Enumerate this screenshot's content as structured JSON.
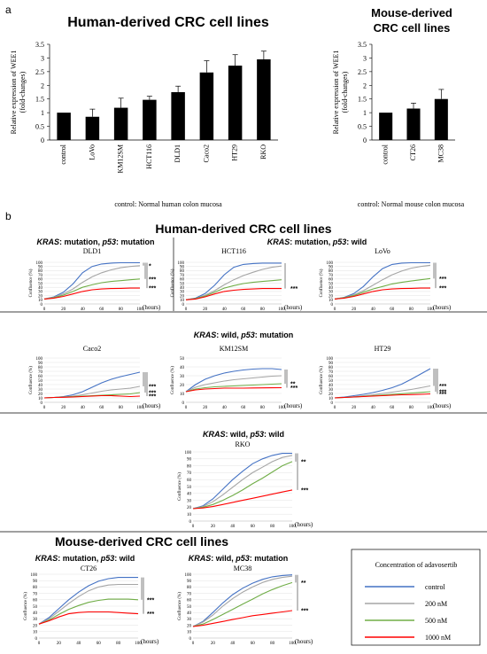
{
  "panel_labels": {
    "a": "a",
    "b": "b"
  },
  "headers": {
    "a_human": "Human-derived CRC cell lines",
    "a_mouse_1": "Mouse-derived",
    "a_mouse_2": "CRC cell lines",
    "b_human": "Human-derived CRC cell lines",
    "b_mouse": "Mouse-derived CRC cell lines"
  },
  "genotypes": {
    "g1": {
      "kras": "KRAS",
      "rest": ": mutation, ",
      "p53": "p53",
      "rest2": ": mutation"
    },
    "g2": {
      "kras": "KRAS",
      "rest": ": mutation, ",
      "p53": "p53",
      "rest2": ": wild"
    },
    "g3": {
      "kras": "KRAS",
      "rest": ": wild, ",
      "p53": "p53",
      "rest2": ": mutation"
    },
    "g4": {
      "kras": "KRAS",
      "rest": ": wild, ",
      "p53": "p53",
      "rest2": ": wild"
    },
    "g5": {
      "kras": "KRAS",
      "rest": ": mutation, ",
      "p53": "p53",
      "rest2": ": wild"
    },
    "g6": {
      "kras": "KRAS",
      "rest": ": wild, ",
      "p53": "p53",
      "rest2": ": mutation"
    }
  },
  "legend": {
    "title": "Concentration of adavosertib",
    "items": [
      {
        "label": "control",
        "color": "#4472c4"
      },
      {
        "label": "200 nM",
        "color": "#a5a5a5"
      },
      {
        "label": "500 nM",
        "color": "#70ad47"
      },
      {
        "label": "1000 nM",
        "color": "#ff0000"
      }
    ]
  },
  "chart_data": [
    {
      "id": "a_human",
      "type": "bar",
      "ylabel_1": "Relative expression of WEE1",
      "ylabel_2": "(fold-changes)",
      "caption": "control: Normal human colon mucosa",
      "ylim": [
        0,
        3.5
      ],
      "yticks": [
        "0",
        "0.5",
        "1",
        "1.5",
        "2",
        "2.5",
        "3",
        "3.5"
      ],
      "categories": [
        "control",
        "LoVo",
        "KM12SM",
        "HCT116",
        "DLD1",
        "Caco2",
        "HT29",
        "RKO"
      ],
      "values": [
        1.0,
        0.85,
        1.18,
        1.47,
        1.75,
        2.47,
        2.72,
        2.95
      ],
      "errors": [
        0.0,
        0.28,
        0.35,
        0.13,
        0.22,
        0.43,
        0.4,
        0.3
      ]
    },
    {
      "id": "a_mouse",
      "type": "bar",
      "ylabel_1": "Relative expression of WEE1",
      "ylabel_2": "(fold-changes)",
      "caption": "control: Normal mouse colon mucosa",
      "ylim": [
        0,
        3.5
      ],
      "yticks": [
        "0",
        "0.5",
        "1",
        "1.5",
        "2",
        "2.5",
        "3",
        "3.5"
      ],
      "categories": [
        "control",
        "CT26",
        "MC38"
      ],
      "values": [
        1.0,
        1.15,
        1.5
      ],
      "errors": [
        0.0,
        0.2,
        0.35
      ]
    },
    {
      "id": "dld1",
      "type": "line",
      "title": "DLD1",
      "ylabel": "Confluence (%)",
      "xlabel": "(hours)",
      "ylim": [
        0,
        100
      ],
      "xlim": [
        0,
        100
      ],
      "yticks": [
        "0",
        "10",
        "20",
        "30",
        "40",
        "50",
        "60",
        "70",
        "80",
        "90",
        "100"
      ],
      "xticks": [
        "0",
        "20",
        "40",
        "60",
        "80",
        "100"
      ],
      "x": [
        0,
        10,
        20,
        30,
        40,
        50,
        60,
        70,
        80,
        90,
        100
      ],
      "series": [
        {
          "name": "control",
          "values": [
            12,
            17,
            28,
            48,
            75,
            90,
            96,
            98,
            99,
            99,
            99
          ]
        },
        {
          "name": "200 nM",
          "values": [
            12,
            16,
            24,
            36,
            52,
            65,
            75,
            82,
            87,
            90,
            92
          ]
        },
        {
          "name": "500 nM",
          "values": [
            12,
            15,
            21,
            30,
            40,
            46,
            51,
            54,
            56,
            58,
            60
          ]
        },
        {
          "name": "1000 nM",
          "values": [
            12,
            14,
            18,
            24,
            30,
            34,
            36,
            37,
            37.5,
            38,
            38
          ]
        }
      ],
      "significance": [
        "*",
        "***",
        "***"
      ]
    },
    {
      "id": "hct116",
      "type": "line",
      "title": "HCT116",
      "ylabel": "Confluence (%)",
      "xlabel": "(hours)",
      "ylim": [
        0,
        100
      ],
      "xlim": [
        0,
        100
      ],
      "yticks": [
        "0",
        "10",
        "20",
        "30",
        "40",
        "50",
        "60",
        "70",
        "80",
        "90",
        "100"
      ],
      "xticks": [
        "0",
        "20",
        "40",
        "60",
        "80",
        "100"
      ],
      "x": [
        0,
        10,
        20,
        30,
        40,
        50,
        60,
        70,
        80,
        90,
        100
      ],
      "series": [
        {
          "name": "control",
          "values": [
            10,
            14,
            25,
            45,
            70,
            88,
            95,
            97,
            98,
            98,
            98
          ]
        },
        {
          "name": "200 nM",
          "values": [
            10,
            13,
            21,
            32,
            46,
            58,
            68,
            76,
            83,
            88,
            91
          ]
        },
        {
          "name": "500 nM",
          "values": [
            10,
            13,
            19,
            28,
            38,
            44,
            49,
            52,
            54,
            56,
            58
          ]
        },
        {
          "name": "1000 nM",
          "values": [
            10,
            12,
            17,
            24,
            30,
            33,
            35,
            36,
            37,
            37,
            37
          ]
        }
      ],
      "significance": [
        "***"
      ]
    },
    {
      "id": "lovo",
      "type": "line",
      "title": "LoVo",
      "ylabel": "Confluence (%)",
      "xlabel": "(hours)",
      "ylim": [
        0,
        100
      ],
      "xlim": [
        0,
        100
      ],
      "yticks": [
        "0",
        "10",
        "20",
        "30",
        "40",
        "50",
        "60",
        "70",
        "80",
        "90",
        "100"
      ],
      "xticks": [
        "0",
        "20",
        "40",
        "60",
        "80",
        "100"
      ],
      "x": [
        0,
        10,
        20,
        30,
        40,
        50,
        60,
        70,
        80,
        90,
        100
      ],
      "series": [
        {
          "name": "control",
          "values": [
            12,
            16,
            25,
            42,
            65,
            85,
            95,
            98,
            99,
            99,
            99
          ]
        },
        {
          "name": "200 nM",
          "values": [
            12,
            15,
            22,
            32,
            45,
            58,
            70,
            79,
            86,
            90,
            93
          ]
        },
        {
          "name": "500 nM",
          "values": [
            12,
            15,
            20,
            28,
            36,
            42,
            48,
            52,
            55,
            58,
            61
          ]
        },
        {
          "name": "1000 nM",
          "values": [
            12,
            14,
            18,
            24,
            30,
            34,
            36,
            37,
            37.5,
            38,
            38
          ]
        }
      ],
      "significance": [
        "***",
        "***"
      ]
    },
    {
      "id": "caco2",
      "type": "line",
      "title": "Caco2",
      "ylabel": "Confluence (%)",
      "xlabel": "(hours)",
      "ylim": [
        0,
        100
      ],
      "xlim": [
        0,
        100
      ],
      "yticks": [
        "0",
        "10",
        "20",
        "30",
        "40",
        "50",
        "60",
        "70",
        "80",
        "90",
        "100"
      ],
      "xticks": [
        "0",
        "20",
        "40",
        "60",
        "80",
        "100"
      ],
      "x": [
        0,
        10,
        20,
        30,
        40,
        50,
        60,
        70,
        80,
        90,
        100
      ],
      "series": [
        {
          "name": "control",
          "values": [
            10,
            11,
            13,
            17,
            24,
            34,
            44,
            52,
            58,
            63,
            68
          ]
        },
        {
          "name": "200 nM",
          "values": [
            10,
            11,
            12,
            14,
            17,
            21,
            25,
            28,
            30,
            32,
            36
          ]
        },
        {
          "name": "500 nM",
          "values": [
            10,
            11,
            12,
            13,
            14,
            15,
            16,
            17,
            18,
            19,
            22
          ]
        },
        {
          "name": "1000 nM",
          "values": [
            10,
            11,
            11.5,
            12,
            13,
            14,
            15,
            15,
            14,
            13,
            14
          ]
        }
      ],
      "significance": [
        "***",
        "***",
        "***"
      ]
    },
    {
      "id": "km12sm",
      "type": "line",
      "title": "KM12SM",
      "ylabel": "Confluence (%)",
      "xlabel": "(hours)",
      "ylim": [
        0,
        50
      ],
      "xlim": [
        0,
        100
      ],
      "yticks": [
        "0",
        "10",
        "20",
        "30",
        "40",
        "50"
      ],
      "xticks": [
        "0",
        "20",
        "40",
        "60",
        "80",
        "100"
      ],
      "x": [
        0,
        10,
        20,
        30,
        40,
        50,
        60,
        70,
        80,
        90,
        100
      ],
      "series": [
        {
          "name": "control",
          "values": [
            12,
            20,
            26,
            30,
            33,
            35,
            36.5,
            37.5,
            38,
            38,
            37
          ]
        },
        {
          "name": "200 nM",
          "values": [
            12,
            17,
            20,
            22,
            24,
            25.5,
            26.5,
            27.5,
            28.5,
            29.5,
            30
          ]
        },
        {
          "name": "500 nM",
          "values": [
            12,
            15,
            16.5,
            17.5,
            18,
            18.5,
            19,
            19.5,
            20,
            20.5,
            21
          ]
        },
        {
          "name": "1000 nM",
          "values": [
            12,
            14,
            15,
            15.5,
            16,
            16,
            16,
            16.2,
            16.3,
            16.4,
            16.5
          ]
        }
      ],
      "significance": [
        "**",
        "***"
      ]
    },
    {
      "id": "ht29",
      "type": "line",
      "title": "HT29",
      "ylabel": "Confluence (%)",
      "xlabel": "(hours)",
      "ylim": [
        0,
        100
      ],
      "xlim": [
        0,
        100
      ],
      "yticks": [
        "0",
        "10",
        "20",
        "30",
        "40",
        "50",
        "60",
        "70",
        "80",
        "90",
        "100"
      ],
      "xticks": [
        "0",
        "20",
        "40",
        "60",
        "80",
        "100"
      ],
      "x": [
        0,
        10,
        20,
        30,
        40,
        50,
        60,
        70,
        80,
        90,
        100
      ],
      "series": [
        {
          "name": "control",
          "values": [
            10,
            12,
            15,
            18,
            22,
            27,
            33,
            41,
            52,
            64,
            76
          ]
        },
        {
          "name": "200 nM",
          "values": [
            10,
            11,
            13,
            15,
            17,
            20,
            23,
            26,
            29,
            33,
            37
          ]
        },
        {
          "name": "500 nM",
          "values": [
            10,
            11,
            12,
            13.5,
            15,
            16.5,
            18,
            19.5,
            21,
            22.5,
            24
          ]
        },
        {
          "name": "1000 nM",
          "values": [
            10,
            11,
            12,
            13,
            14,
            15,
            16,
            17,
            17.5,
            18,
            19
          ]
        }
      ],
      "significance": [
        "***",
        "***",
        "***"
      ]
    },
    {
      "id": "rko",
      "type": "line",
      "title": "RKO",
      "ylabel": "Confluence (%)",
      "xlabel": "(hours)",
      "ylim": [
        0,
        100
      ],
      "xlim": [
        0,
        100
      ],
      "yticks": [
        "0",
        "10",
        "20",
        "30",
        "40",
        "50",
        "60",
        "70",
        "80",
        "90",
        "100"
      ],
      "xticks": [
        "0",
        "20",
        "40",
        "60",
        "80",
        "100"
      ],
      "x": [
        0,
        10,
        20,
        30,
        40,
        50,
        60,
        70,
        80,
        90,
        100
      ],
      "series": [
        {
          "name": "control",
          "values": [
            18,
            22,
            32,
            46,
            60,
            72,
            83,
            90,
            95,
            98,
            98
          ]
        },
        {
          "name": "200 nM",
          "values": [
            18,
            21,
            28,
            38,
            49,
            60,
            70,
            78,
            86,
            92,
            95
          ]
        },
        {
          "name": "500 nM",
          "values": [
            18,
            20,
            24,
            30,
            37,
            45,
            54,
            62,
            71,
            80,
            86
          ]
        },
        {
          "name": "1000 nM",
          "values": [
            18,
            19,
            21,
            24,
            27,
            30,
            33,
            36,
            39,
            42,
            45
          ]
        }
      ],
      "significance": [
        "**",
        "***"
      ]
    },
    {
      "id": "ct26",
      "type": "line",
      "title": "CT26",
      "ylabel": "Confluence (%)",
      "xlabel": "(hours)",
      "ylim": [
        0,
        100
      ],
      "xlim": [
        0,
        100
      ],
      "yticks": [
        "0",
        "10",
        "20",
        "30",
        "40",
        "50",
        "60",
        "70",
        "80",
        "90",
        "100"
      ],
      "xticks": [
        "0",
        "20",
        "40",
        "60",
        "80",
        "100"
      ],
      "x": [
        0,
        10,
        20,
        30,
        40,
        50,
        60,
        70,
        80,
        90,
        100
      ],
      "series": [
        {
          "name": "control",
          "values": [
            22,
            32,
            46,
            60,
            72,
            82,
            89,
            93,
            95,
            95,
            95
          ]
        },
        {
          "name": "200 nM",
          "values": [
            22,
            30,
            42,
            54,
            65,
            74,
            80,
            83,
            84,
            84,
            84
          ]
        },
        {
          "name": "500 nM",
          "values": [
            22,
            28,
            37,
            45,
            51,
            56,
            59,
            61,
            61,
            61,
            60
          ]
        },
        {
          "name": "1000 nM",
          "values": [
            22,
            27,
            33,
            38,
            40,
            41,
            41,
            41,
            40,
            39,
            38
          ]
        }
      ],
      "significance": [
        "***",
        "***"
      ]
    },
    {
      "id": "mc38",
      "type": "line",
      "title": "MC38",
      "ylabel": "Confluence (%)",
      "xlabel": "(hours)",
      "ylim": [
        0,
        100
      ],
      "xlim": [
        0,
        100
      ],
      "yticks": [
        "0",
        "10",
        "20",
        "30",
        "40",
        "50",
        "60",
        "70",
        "80",
        "90",
        "100"
      ],
      "xticks": [
        "0",
        "20",
        "40",
        "60",
        "80",
        "100"
      ],
      "x": [
        0,
        10,
        20,
        30,
        40,
        50,
        60,
        70,
        80,
        90,
        100
      ],
      "series": [
        {
          "name": "control",
          "values": [
            18,
            26,
            40,
            55,
            68,
            78,
            86,
            92,
            96,
            98,
            99
          ]
        },
        {
          "name": "200 nM",
          "values": [
            18,
            25,
            36,
            50,
            62,
            72,
            80,
            87,
            92,
            95,
            97
          ]
        },
        {
          "name": "500 nM",
          "values": [
            18,
            22,
            29,
            37,
            45,
            53,
            61,
            69,
            76,
            82,
            87
          ]
        },
        {
          "name": "1000 nM",
          "values": [
            18,
            20,
            23,
            26,
            29,
            32,
            35,
            37,
            39,
            41,
            43
          ]
        }
      ],
      "significance": [
        "**",
        "***"
      ]
    }
  ]
}
